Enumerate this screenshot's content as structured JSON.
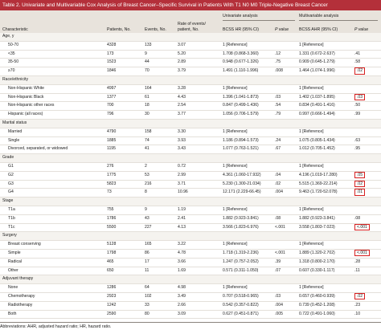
{
  "title": "Table 2. Univariate and Multivariable Cox Analysis of Breast Cancer–Specific Survival in Patients With T1 N0 M0 Triple-Negative Breast Cancer",
  "headers": {
    "characteristic": "Characteristic",
    "patients": "Patients, No.",
    "events": "Events, No.",
    "rate_line1": "Rate of events/",
    "rate_line2": "patient, No.",
    "univariate": "Univariate analysis",
    "multivariable": "Multivariable analysis",
    "uni_hr": "BCSS HR (95% CI)",
    "uni_p": "P value",
    "multi_hr": "BCSS AHR (95% CI)",
    "multi_p": "P value"
  },
  "rows": [
    {
      "type": "section",
      "label": "Age, y"
    },
    {
      "type": "data",
      "label": "50-70",
      "patients": "4328",
      "events": "133",
      "rate": "3.07",
      "uni_hr": "1 [Reference]",
      "uni_p": "",
      "multi_hr": "1 [Reference]",
      "multi_p": "",
      "hl": false
    },
    {
      "type": "data",
      "label": "<35",
      "patients": "173",
      "events": "9",
      "rate": "5.20",
      "uni_hr": "1.708 (0.868-3.360)",
      "uni_p": ".12",
      "multi_hr": "1.331 (0.672-2.637)",
      "multi_p": ".41",
      "hl": false
    },
    {
      "type": "data",
      "label": "35-50",
      "patients": "1523",
      "events": "44",
      "rate": "2.89",
      "uni_hr": "0.948 (0.677-1.326)",
      "uni_p": ".75",
      "multi_hr": "0.909 (0.645-1.279)",
      "multi_p": ".58",
      "hl": false
    },
    {
      "type": "data",
      "label": "≥70",
      "patients": "1846",
      "events": "70",
      "rate": "3.79",
      "uni_hr": "1.491 (1.110-1.996)",
      "uni_p": ".008",
      "multi_hr": "1.464 (1.074-1.996)",
      "multi_p": ".02",
      "hl": true
    },
    {
      "type": "section",
      "label": "Race/ethnicity"
    },
    {
      "type": "data",
      "label": "Non-Hispanic White",
      "patients": "4997",
      "events": "164",
      "rate": "3.28",
      "uni_hr": "1 [Reference]",
      "uni_p": "",
      "multi_hr": "1 [Reference]",
      "multi_p": "",
      "hl": false
    },
    {
      "type": "data",
      "label": "Non-Hispanic Black",
      "patients": "1377",
      "events": "61",
      "rate": "4.43",
      "uni_hr": "1.396 (1.041-1.873)",
      "uni_p": ".03",
      "multi_hr": "1.402 (1.037-1.895)",
      "multi_p": ".03",
      "hl": true
    },
    {
      "type": "data",
      "label": "Non-Hispanic other races",
      "patients": "700",
      "events": "18",
      "rate": "2.54",
      "uni_hr": "0.847 (0.499-1.436)",
      "uni_p": ".54",
      "multi_hr": "0.834 (0.491-1.416)",
      "multi_p": ".50",
      "hl": false
    },
    {
      "type": "data",
      "label": "Hispanic (all races)",
      "patients": "796",
      "events": "30",
      "rate": "3.77",
      "uni_hr": "1.056 (0.706-1.579)",
      "uni_p": ".79",
      "multi_hr": "0.997 (0.666-1.494)",
      "multi_p": ".99",
      "hl": false
    },
    {
      "type": "section",
      "label": "Marital status"
    },
    {
      "type": "data",
      "label": "Married",
      "patients": "4790",
      "events": "158",
      "rate": "3.30",
      "uni_hr": "1 [Reference]",
      "uni_p": "",
      "multi_hr": "1 [Reference]",
      "multi_p": "",
      "hl": false
    },
    {
      "type": "data",
      "label": "Single",
      "patients": "1885",
      "events": "74",
      "rate": "3.93",
      "uni_hr": "1.186 (0.894-1.573)",
      "uni_p": ".24",
      "multi_hr": "1.075 (0.805-1.434)",
      "multi_p": ".63",
      "hl": false
    },
    {
      "type": "data",
      "label": "Divorced, separated, or widowed",
      "patients": "1195",
      "events": "41",
      "rate": "3.43",
      "uni_hr": "1.077 (0.763-1.521)",
      "uni_p": ".67",
      "multi_hr": "1.012 (0.705-1.452)",
      "multi_p": ".95",
      "hl": false
    },
    {
      "type": "section",
      "label": "Grade"
    },
    {
      "type": "data",
      "label": "G1",
      "patients": "276",
      "events": "2",
      "rate": "0.72",
      "uni_hr": "1 [Reference]",
      "uni_p": "",
      "multi_hr": "1 [Reference]",
      "multi_p": "",
      "hl": false
    },
    {
      "type": "data",
      "label": "G2",
      "patients": "1775",
      "events": "53",
      "rate": "2.99",
      "uni_hr": "4.361 (1.060-17.932)",
      "uni_p": ".04",
      "multi_hr": "4.196 (1.019-17.280)",
      "multi_p": ".05",
      "hl": true
    },
    {
      "type": "data",
      "label": "G3",
      "patients": "5823",
      "events": "216",
      "rate": "3.71",
      "uni_hr": "5.230 (1.300-21.034)",
      "uni_p": ".02",
      "multi_hr": "5.515 (1.369-22.214)",
      "multi_p": ".02",
      "hl": true
    },
    {
      "type": "data",
      "label": "G4",
      "patients": "73",
      "events": "8",
      "rate": "10.96",
      "uni_hr": "12.171 (2.229-66.45)",
      "uni_p": ".004",
      "multi_hr": "9.463 (1.720-52.078)",
      "multi_p": ".01",
      "hl": true
    },
    {
      "type": "section",
      "label": "Stage"
    },
    {
      "type": "data",
      "label": "T1a",
      "patients": "755",
      "events": "9",
      "rate": "1.19",
      "uni_hr": "1 [Reference]",
      "uni_p": "",
      "multi_hr": "1 [Reference]",
      "multi_p": "",
      "hl": false
    },
    {
      "type": "data",
      "label": "T1b",
      "patients": "1786",
      "events": "43",
      "rate": "2.41",
      "uni_hr": "1.882 (0.923-3.841)",
      "uni_p": ".08",
      "multi_hr": "1.882 (0.923-3.841)",
      "multi_p": ".08",
      "hl": false
    },
    {
      "type": "data",
      "label": "T1c",
      "patients": "5500",
      "events": "227",
      "rate": "4.13",
      "uni_hr": "3.566 (1.823-6.976)",
      "uni_p": "<.001",
      "multi_hr": "3.558 (1.803-7.023)",
      "multi_p": "<.001",
      "hl": true
    },
    {
      "type": "section",
      "label": "Surgery"
    },
    {
      "type": "data",
      "label": "Breast conserving",
      "patients": "5128",
      "events": "165",
      "rate": "3.22",
      "uni_hr": "1 [Reference]",
      "uni_p": "",
      "multi_hr": "1 [Reference]",
      "multi_p": "",
      "hl": false
    },
    {
      "type": "data",
      "label": "Simple",
      "patients": "1798",
      "events": "86",
      "rate": "4.78",
      "uni_hr": "1.718 (1.319-2.236)",
      "uni_p": "<.001",
      "multi_hr": "1.889 (1.320-2.702)",
      "multi_p": "<.001",
      "hl": true
    },
    {
      "type": "data",
      "label": "Radical",
      "patients": "465",
      "events": "17",
      "rate": "3.66",
      "uni_hr": "1.247 (0.757-2.052)",
      "uni_p": ".39",
      "multi_hr": "1.318 (0.800-2.170)",
      "multi_p": ".28",
      "hl": false
    },
    {
      "type": "data",
      "label": "Other",
      "patients": "650",
      "events": "11",
      "rate": "1.69",
      "uni_hr": "0.571 (0.311-1.050)",
      "uni_p": ".07",
      "multi_hr": "0.607 (0.330-1.117)",
      "multi_p": ".11",
      "hl": false
    },
    {
      "type": "section",
      "label": "Adjuvant therapy"
    },
    {
      "type": "data",
      "label": "None",
      "patients": "1286",
      "events": "64",
      "rate": "4.98",
      "uni_hr": "1 [Reference]",
      "uni_p": "",
      "multi_hr": "1 [Reference]",
      "multi_p": "",
      "hl": false
    },
    {
      "type": "data",
      "label": "Chemotherapy",
      "patients": "2923",
      "events": "102",
      "rate": "3.49",
      "uni_hr": "0.707 (0.518-0.965)",
      "uni_p": ".03",
      "multi_hr": "0.657 (0.460-0.939)",
      "multi_p": ".02",
      "hl": true
    },
    {
      "type": "data",
      "label": "Radiotherapy",
      "patients": "1242",
      "events": "33",
      "rate": "2.66",
      "uni_hr": "0.542 (0.357-0.822)",
      "uni_p": ".004",
      "multi_hr": "0.739 (0.452-1.208)",
      "multi_p": ".23",
      "hl": false
    },
    {
      "type": "data",
      "label": "Both",
      "patients": "2590",
      "events": "80",
      "rate": "3.09",
      "uni_hr": "0.627 (0.451-0.871)",
      "uni_p": ".005",
      "multi_hr": "0.722 (0.491-1.060)",
      "multi_p": ".10",
      "hl": false
    }
  ],
  "footnote": "Abbreviations: AHR, adjusted hazard ratio; HR, hazard ratio.",
  "colors": {
    "title_bar": "#b4303a",
    "header_bg": "#e8e3dc",
    "section_bg": "#f5f3ef",
    "highlight": "#d62020"
  }
}
